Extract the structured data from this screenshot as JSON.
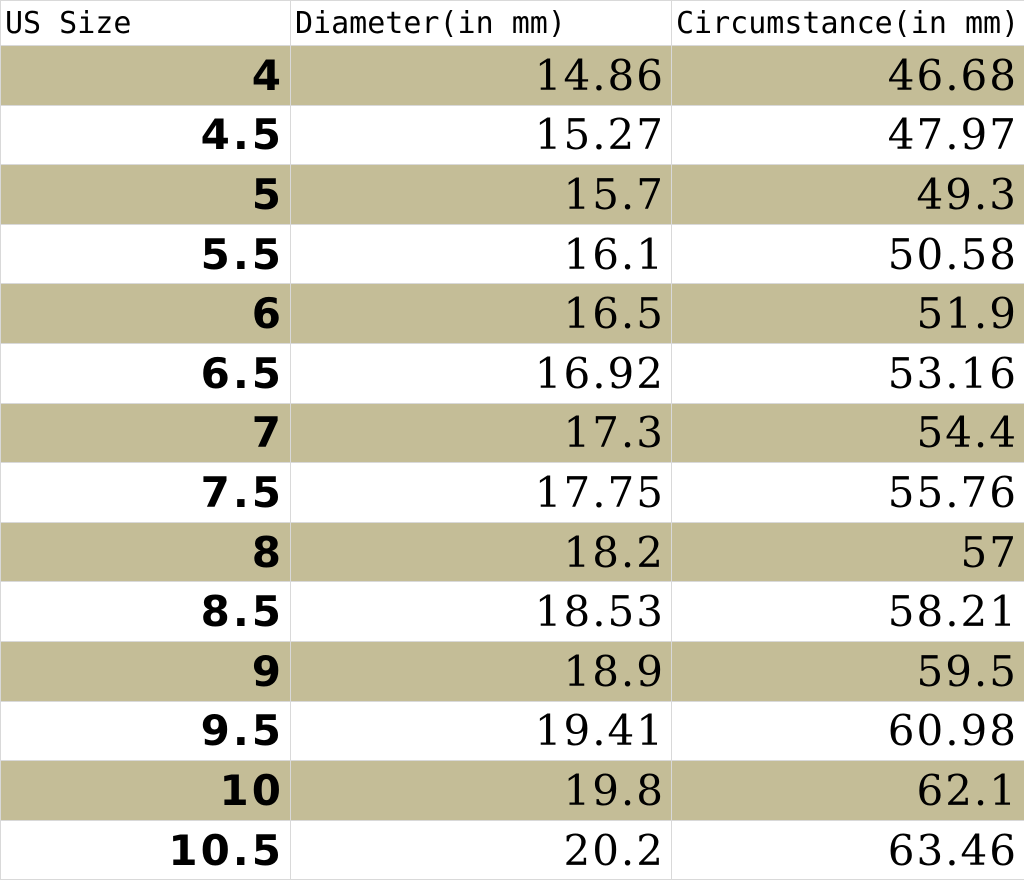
{
  "table": {
    "headers": [
      "US Size",
      "Diameter(in mm)",
      "Circumstance(in mm)"
    ],
    "rows": [
      {
        "size": "4",
        "diameter": "14.86",
        "circumference": "46.68"
      },
      {
        "size": "4.5",
        "diameter": "15.27",
        "circumference": "47.97"
      },
      {
        "size": "5",
        "diameter": "15.7",
        "circumference": "49.3"
      },
      {
        "size": "5.5",
        "diameter": "16.1",
        "circumference": "50.58"
      },
      {
        "size": "6",
        "diameter": "16.5",
        "circumference": "51.9"
      },
      {
        "size": "6.5",
        "diameter": "16.92",
        "circumference": "53.16"
      },
      {
        "size": "7",
        "diameter": "17.3",
        "circumference": "54.4"
      },
      {
        "size": "7.5",
        "diameter": "17.75",
        "circumference": "55.76"
      },
      {
        "size": "8",
        "diameter": "18.2",
        "circumference": "57"
      },
      {
        "size": "8.5",
        "diameter": "18.53",
        "circumference": "58.21"
      },
      {
        "size": "9",
        "diameter": "18.9",
        "circumference": "59.5"
      },
      {
        "size": "9.5",
        "diameter": "19.41",
        "circumference": "60.98"
      },
      {
        "size": "10",
        "diameter": "19.8",
        "circumference": "62.1"
      },
      {
        "size": "10.5",
        "diameter": "20.2",
        "circumference": "63.46"
      }
    ]
  },
  "colors": {
    "shaded_row": "#c4bd97",
    "plain_row": "#ffffff",
    "gridline": "#d9d9d9"
  }
}
